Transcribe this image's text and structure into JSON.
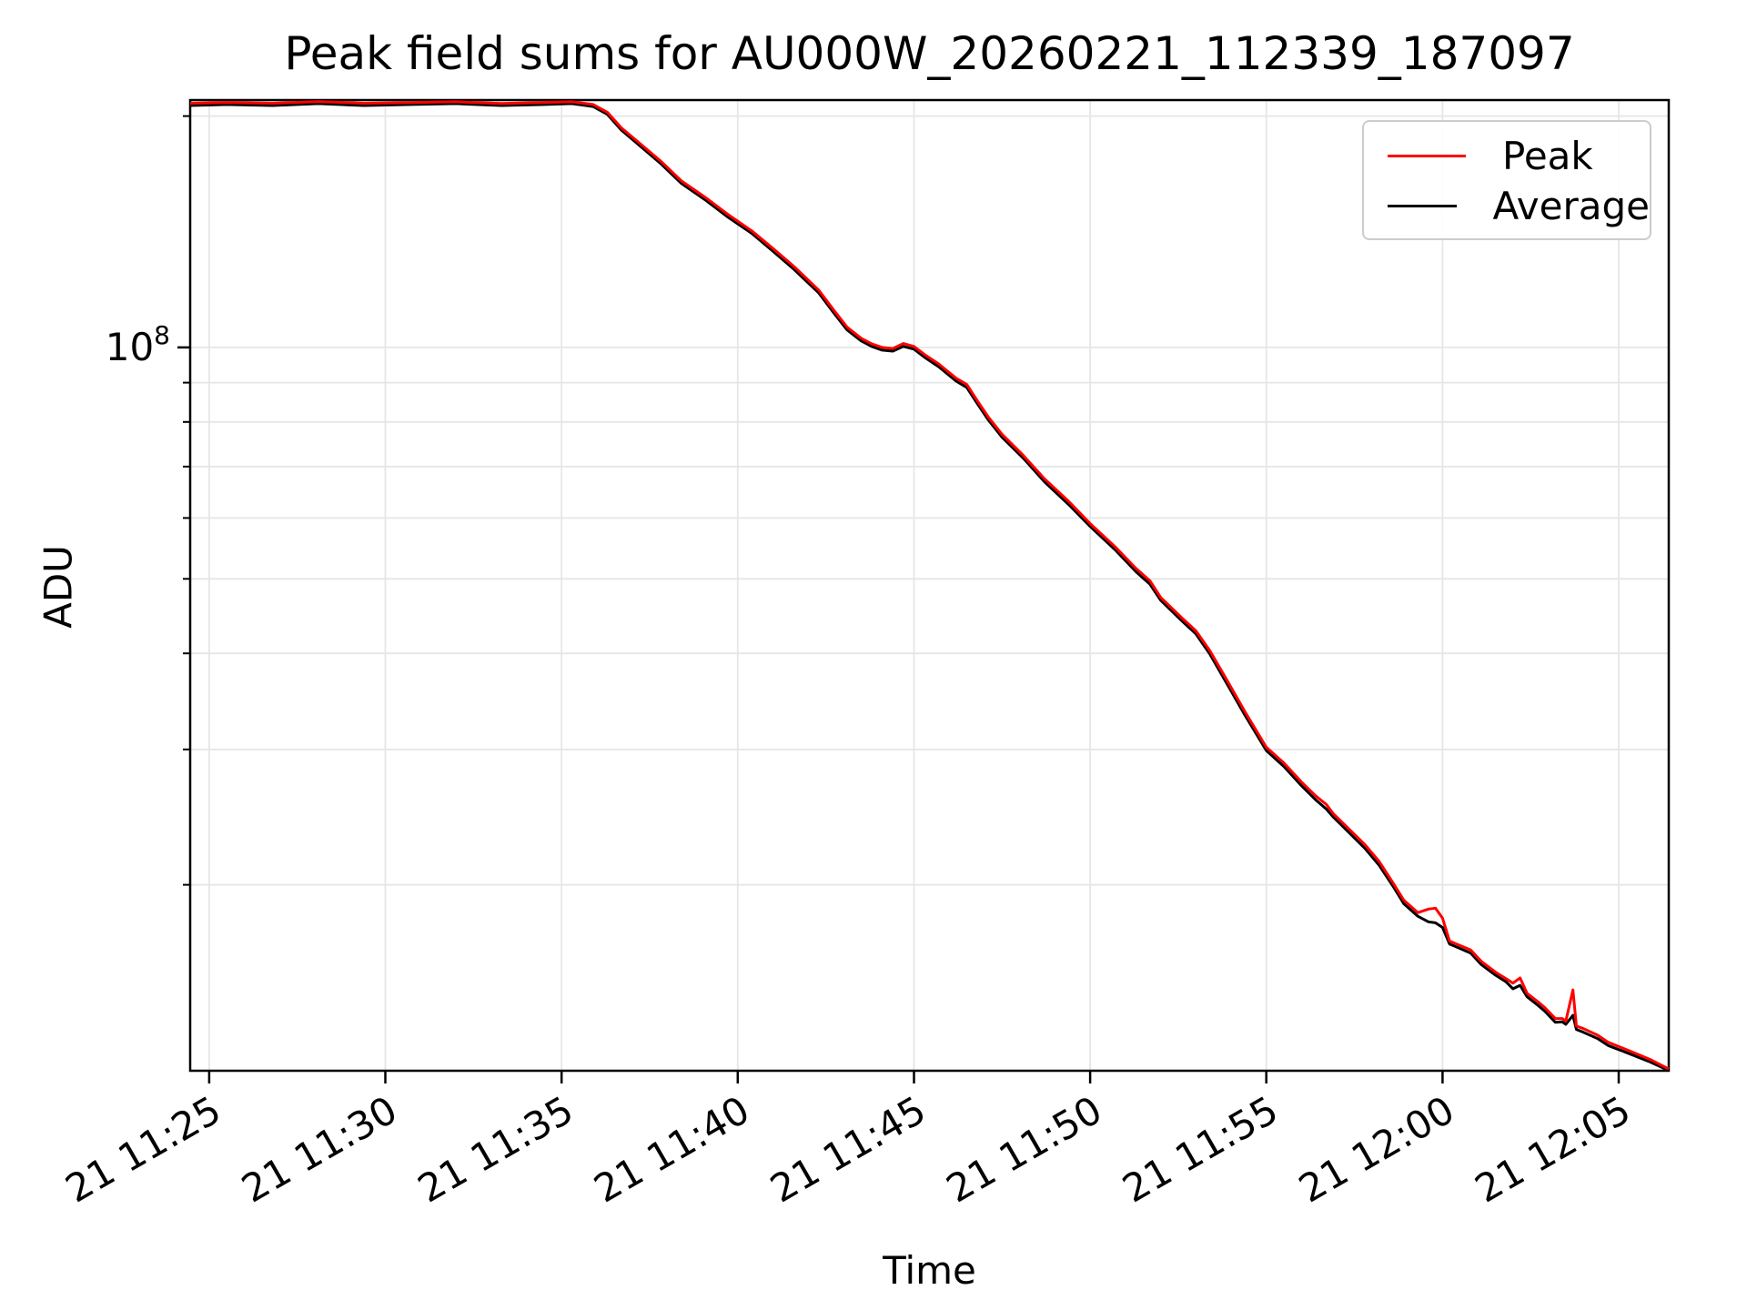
{
  "title": "Peak field sums for AU000W_20260221_112339_187097",
  "xlabel": "Time",
  "ylabel": "ADU",
  "legend": {
    "position": "upper right",
    "items": [
      {
        "label": "Peak",
        "color": "#ff0000"
      },
      {
        "label": "Average",
        "color": "#000000"
      }
    ]
  },
  "colors": {
    "peak_line": "#ff0000",
    "average_line": "#000000",
    "grid": "#e6e6e6",
    "spine": "#000000",
    "legend_border": "#cccccc",
    "background": "#ffffff"
  },
  "chart_data": {
    "type": "line",
    "title": "Peak field sums for AU000W_20260221_112339_187097",
    "xlabel": "Time",
    "ylabel": "ADU",
    "yscale": "log",
    "grid": "both",
    "legend_position": "upper right",
    "x_unit": "minutes after 21 Feb 11:00",
    "xlim": [
      24.46,
      66.42
    ],
    "ylim": [
      11460000,
      209800000
    ],
    "x_ticks": [
      {
        "m": 25,
        "label": "21 11:25"
      },
      {
        "m": 30,
        "label": "21 11:30"
      },
      {
        "m": 35,
        "label": "21 11:35"
      },
      {
        "m": 40,
        "label": "21 11:40"
      },
      {
        "m": 45,
        "label": "21 11:45"
      },
      {
        "m": 50,
        "label": "21 11:50"
      },
      {
        "m": 55,
        "label": "21 11:55"
      },
      {
        "m": 60,
        "label": "21 12:00"
      },
      {
        "m": 65,
        "label": "21 12:05"
      }
    ],
    "y_major_ticks": [
      {
        "value": 100000000,
        "label_base": "10",
        "label_exp": "8"
      }
    ],
    "y_minor_ticks": [
      200000000,
      90000000,
      80000000,
      70000000,
      60000000,
      50000000,
      40000000,
      30000000,
      20000000
    ],
    "x": [
      24.46,
      25.52,
      26.8,
      28.1,
      29.4,
      30.7,
      32.0,
      33.3,
      34.5,
      35.3,
      35.9,
      36.3,
      36.7,
      37.1,
      37.8,
      38.4,
      39.1,
      39.7,
      40.4,
      41.0,
      41.6,
      42.3,
      42.7,
      43.1,
      43.5,
      43.8,
      44.1,
      44.4,
      44.7,
      45.0,
      45.3,
      45.7,
      46.2,
      46.5,
      46.8,
      47.1,
      47.5,
      48.1,
      48.7,
      49.4,
      50.0,
      50.7,
      51.3,
      51.7,
      52.0,
      52.6,
      53.0,
      53.4,
      53.9,
      54.4,
      55.0,
      55.5,
      56.0,
      56.4,
      56.7,
      56.9,
      57.3,
      57.8,
      58.2,
      58.6,
      58.9,
      59.3,
      59.6,
      59.8,
      60.0,
      60.2,
      60.4,
      60.8,
      61.1,
      61.5,
      61.8,
      62.0,
      62.2,
      62.4,
      62.7,
      62.9,
      63.2,
      63.4,
      63.5,
      63.7,
      63.8,
      64.0,
      64.4,
      64.7,
      65.1,
      65.5,
      65.9,
      66.42
    ],
    "series": [
      {
        "name": "Peak",
        "color": "#ff0000",
        "y": [
          207800000.0,
          208300000.0,
          207800000.0,
          208900000.0,
          207800000.0,
          208200000.0,
          208800000.0,
          207700000.0,
          208300000.0,
          208800000.0,
          207000000.0,
          202300000.0,
          193000000.0,
          186300000.0,
          175000000.0,
          164700000.0,
          156500000.0,
          149200000.0,
          141800000.0,
          134500000.0,
          127400000.0,
          118700000.0,
          112200000.0,
          106300000.0,
          102800000.0,
          101100000.0,
          100000000.0,
          99700000.0,
          101200000.0,
          100300000.0,
          97900000.0,
          95200000.0,
          91200000.0,
          89500000.0,
          85200000.0,
          81300000.0,
          77100000.0,
          72400000.0,
          67500000.0,
          63000000.0,
          59000000.0,
          55100000.0,
          51600000.0,
          49700000.0,
          47300000.0,
          44500000.0,
          42800000.0,
          40300000.0,
          36800000.0,
          33550000.0,
          30200000.0,
          28800000.0,
          27200000.0,
          26100000.0,
          25450000.0,
          24750000.0,
          23750000.0,
          22550000.0,
          21450000.0,
          20100000.0,
          19100000.0,
          18400000.0,
          18600000.0,
          18650000.0,
          18100000.0,
          16900000.0,
          16750000.0,
          16450000.0,
          15900000.0,
          15400000.0,
          15100000.0,
          14900000.0,
          15130000.0,
          14450000.0,
          14100000.0,
          13850000.0,
          13400000.0,
          13400000.0,
          13300000.0,
          14600000.0,
          13100000.0,
          13000000.0,
          12750000.0,
          12480000.0,
          12270000.0,
          12060000.0,
          11850000.0,
          11520000.0
        ]
      },
      {
        "name": "Average",
        "color": "#000000",
        "y": [
          206400000.0,
          207000000.0,
          206400000.0,
          207600000.0,
          206400000.0,
          207000000.0,
          207600000.0,
          206400000.0,
          207000000.0,
          207600000.0,
          205700000.0,
          201000000.0,
          191700000.0,
          185000000.0,
          173700000.0,
          163400000.0,
          155300000.0,
          148000000.0,
          140700000.0,
          133400000.0,
          126300000.0,
          117700000.0,
          111300000.0,
          105400000.0,
          102000000.0,
          100300000.0,
          99200000.0,
          98900000.0,
          100300000.0,
          99500000.0,
          97100000.0,
          94400000.0,
          90400000.0,
          88700000.0,
          84500000.0,
          80600000.0,
          76400000.0,
          71800000.0,
          66900000.0,
          62400000.0,
          58500000.0,
          54600000.0,
          51100000.0,
          49200000.0,
          46900000.0,
          44100000.0,
          42400000.0,
          39900000.0,
          36400000.0,
          33200000.0,
          29900000.0,
          28500000.0,
          26900000.0,
          25800000.0,
          25100000.0,
          24500000.0,
          23500000.0,
          22300000.0,
          21200000.0,
          19900000.0,
          18900000.0,
          18200000.0,
          17900000.0,
          17850000.0,
          17600000.0,
          16750000.0,
          16600000.0,
          16300000.0,
          15750000.0,
          15260000.0,
          14960000.0,
          14650000.0,
          14800000.0,
          14300000.0,
          13950000.0,
          13700000.0,
          13250000.0,
          13270000.0,
          13170000.0,
          13530000.0,
          12970000.0,
          12860000.0,
          12620000.0,
          12360000.0,
          12160000.0,
          11960000.0,
          11760000.0,
          11470000.0
        ]
      }
    ]
  }
}
